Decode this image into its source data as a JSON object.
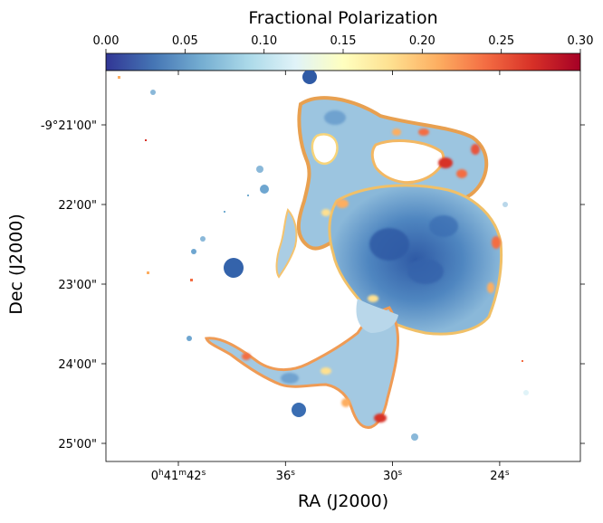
{
  "chart_data": {
    "type": "heatmap",
    "colorbar": {
      "title": "Fractional Polarization",
      "range": [
        0.0,
        0.3
      ],
      "ticks": [
        0.0,
        0.05,
        0.1,
        0.15,
        0.2,
        0.25,
        0.3
      ],
      "tick_labels": [
        "0.00",
        "0.05",
        "0.10",
        "0.15",
        "0.20",
        "0.25",
        "0.30"
      ],
      "colormap": "RdYlBu_r",
      "colors": [
        "#313695",
        "#4575b4",
        "#74add1",
        "#abd9e9",
        "#e0f3f8",
        "#ffffbf",
        "#fee090",
        "#fdae61",
        "#f46d43",
        "#d73027",
        "#a50026"
      ]
    },
    "xlabel": "RA (J2000)",
    "ylabel": "Dec (J2000)",
    "x_ticks": [
      {
        "value": "0h41m42s",
        "h": "0",
        "hu": "h",
        "m": "41",
        "mu": "m",
        "s": "42",
        "su": "s"
      },
      {
        "value": "36s",
        "s": "36",
        "su": "s"
      },
      {
        "value": "30s",
        "s": "30",
        "su": "s"
      },
      {
        "value": "24s",
        "s": "24",
        "su": "s"
      }
    ],
    "y_ticks": [
      "-9°21'00\"",
      "22'00\"",
      "23'00\"",
      "24'00\"",
      "25'00\""
    ],
    "map_summary": "Polarized emission of a galaxy: low fractional polarization (~0.02-0.08) in the central disk, rising to 0.20-0.30 at the filament and disk edges; compact point sources near 0.0-0.05"
  }
}
